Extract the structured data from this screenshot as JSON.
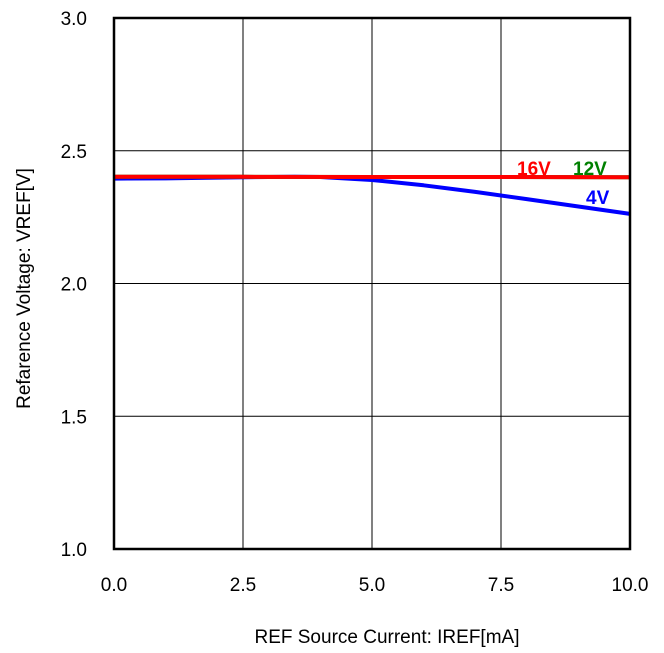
{
  "chart_data": {
    "type": "line",
    "title": "",
    "xlabel": "REF Source Current: IREF[mA]",
    "ylabel": "Refarence Voltage: VREF[V]",
    "xlim": [
      0,
      10
    ],
    "ylim": [
      1.0,
      3.0
    ],
    "x_ticks": [
      "0.0",
      "2.5",
      "5.0",
      "7.5",
      "10.0"
    ],
    "y_ticks": [
      "1.0",
      "1.5",
      "2.0",
      "2.5",
      "3.0"
    ],
    "grid": true,
    "series": [
      {
        "name": "4V",
        "color": "#0000ff",
        "x": [
          0,
          1,
          2,
          3,
          3.5,
          4,
          5,
          6,
          7,
          8,
          9,
          10
        ],
        "y": [
          2.395,
          2.396,
          2.399,
          2.401,
          2.402,
          2.401,
          2.39,
          2.37,
          2.345,
          2.318,
          2.29,
          2.262
        ]
      },
      {
        "name": "12V",
        "color": "#008000",
        "x": [
          0,
          2.5,
          5,
          7.5,
          10
        ],
        "y": [
          2.402,
          2.402,
          2.401,
          2.401,
          2.4
        ]
      },
      {
        "name": "16V",
        "color": "#ff0000",
        "x": [
          0,
          2.5,
          5,
          7.5,
          10
        ],
        "y": [
          2.402,
          2.402,
          2.401,
          2.401,
          2.4
        ]
      }
    ]
  }
}
